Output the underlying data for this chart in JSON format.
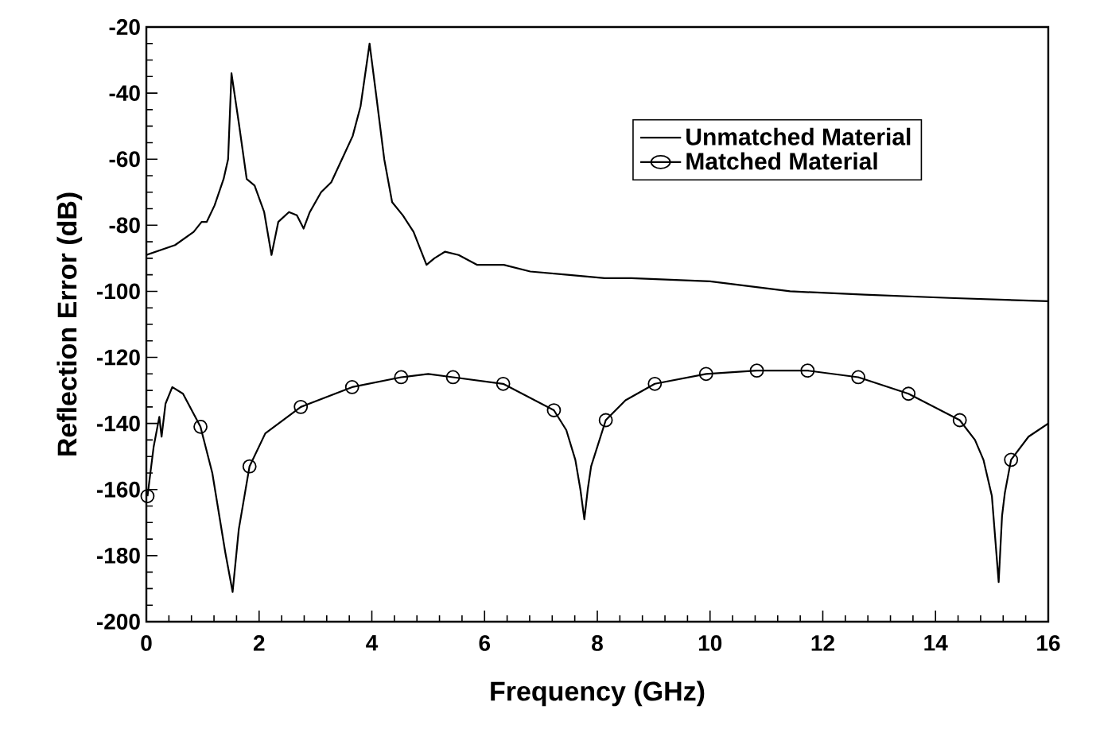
{
  "chart_data": {
    "type": "line",
    "xlabel": "Frequency (GHz)",
    "ylabel": "Reflection Error (dB)",
    "xlim": [
      0,
      16
    ],
    "xticks": [
      0,
      2,
      4,
      6,
      8,
      10,
      12,
      14,
      16
    ],
    "ylim": [
      -200,
      -20
    ],
    "yticks": [
      -200,
      -180,
      -160,
      -140,
      -120,
      -100,
      -80,
      -60,
      -40,
      -20
    ],
    "grid": false,
    "legend": "top right",
    "line_style": "solid",
    "series": [
      {
        "name": "Unmatched Material",
        "color": "#000000",
        "marker": "none",
        "x": [
          0.0,
          0.51,
          0.84,
          0.98,
          1.07,
          1.21,
          1.37,
          1.45,
          1.51,
          1.64,
          1.78,
          1.92,
          2.09,
          2.22,
          2.34,
          2.53,
          2.67,
          2.79,
          2.9,
          3.1,
          3.28,
          3.47,
          3.66,
          3.8,
          3.96,
          4.08,
          4.22,
          4.36,
          4.55,
          4.74,
          4.97,
          5.11,
          5.3,
          5.54,
          5.87,
          6.34,
          6.81,
          7.47,
          8.13,
          8.6,
          10.0,
          11.42,
          12.74,
          14.24,
          16.0
        ],
        "values": [
          -89,
          -86,
          -82,
          -79,
          -79,
          -74,
          -66,
          -60,
          -34,
          -49,
          -66,
          -68,
          -76,
          -89,
          -79,
          -76,
          -77,
          -81,
          -76,
          -70,
          -67,
          -60,
          -53,
          -44,
          -25,
          -41,
          -60,
          -73,
          -77,
          -82,
          -92,
          -90,
          -88,
          -89,
          -92,
          -92,
          -94,
          -95,
          -96,
          -96,
          -97,
          -100,
          -101,
          -102,
          -103
        ]
      },
      {
        "color": "#000000",
        "marker": "none",
        "x": [
          0.02,
          0.13,
          0.23,
          0.27,
          0.34,
          0.46,
          0.65,
          0.96,
          1.17,
          1.4,
          1.53,
          1.64,
          1.83,
          2.11,
          2.74,
          3.65,
          4.52,
          5.0,
          5.44,
          6.33,
          7.23,
          7.45,
          7.61,
          7.7,
          7.77,
          7.83,
          7.89,
          8.15,
          8.5,
          9.02,
          9.93,
          10.83,
          11.73,
          12.63,
          13.52,
          14.43,
          14.7,
          14.85,
          15.0,
          15.12,
          15.18,
          15.23,
          15.34,
          15.65,
          16.0
        ],
        "values": [
          -162,
          -147,
          -138,
          -144,
          -134,
          -129,
          -131,
          -141,
          -155,
          -179,
          -191,
          -172,
          -153,
          -143,
          -135,
          -129,
          -126,
          -125,
          -126,
          -128,
          -136,
          -142,
          -151,
          -160,
          -169,
          -160,
          -153,
          -139,
          -133,
          -128,
          -125,
          -124,
          -124,
          -126,
          -131,
          -139,
          -145,
          -151,
          -162,
          -188,
          -168,
          -161,
          -151,
          -144,
          -140
        ]
      },
      {
        "name": "Matched Material",
        "type": "scatter",
        "color": "#000000",
        "marker": "circle",
        "x": [
          0.02,
          0.96,
          1.83,
          2.74,
          3.65,
          4.52,
          5.44,
          6.33,
          7.23,
          8.15,
          9.02,
          9.93,
          10.83,
          11.73,
          12.63,
          13.52,
          14.43,
          15.34
        ],
        "values": [
          -162,
          -141,
          -153,
          -135,
          -129,
          -126,
          -126,
          -128,
          -136,
          -139,
          -128,
          -125,
          -124,
          -124,
          -126,
          -131,
          -139,
          -151
        ]
      }
    ]
  }
}
